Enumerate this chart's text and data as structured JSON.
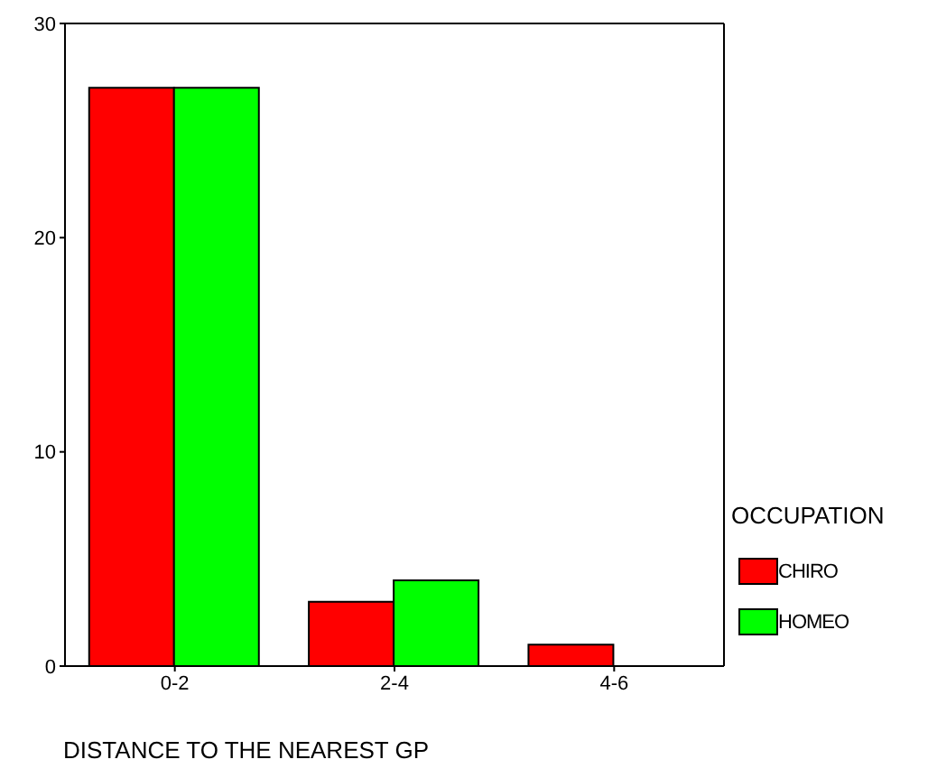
{
  "chart_data": {
    "type": "bar",
    "xlabel": "DISTANCE TO THE NEAREST GP",
    "legend_title": "OCCUPATION",
    "categories": [
      "0-2",
      "2-4",
      "4-6"
    ],
    "series": [
      {
        "name": "CHIRO",
        "color": "#ff0000",
        "values": [
          27,
          3,
          1
        ]
      },
      {
        "name": "HOMEO",
        "color": "#00ff00",
        "values": [
          27,
          4,
          0
        ]
      }
    ],
    "ylim": [
      0,
      30
    ],
    "yticks": [
      0,
      10,
      20,
      30
    ],
    "grid": false,
    "legend": "right"
  }
}
